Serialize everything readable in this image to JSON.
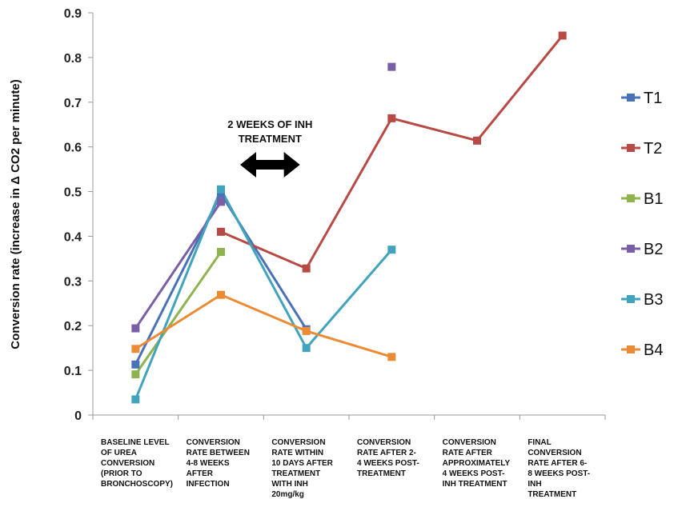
{
  "chart_data": {
    "type": "line",
    "title": "",
    "ylabel": "Conversion rate (increase in Δ CO2 per minute)",
    "xlabel": "",
    "ylim": [
      0,
      0.9
    ],
    "yticks": [
      "0",
      "0.1",
      "0.2",
      "0.3",
      "0.4",
      "0.5",
      "0.6",
      "0.7",
      "0.8",
      "0.9"
    ],
    "grid": false,
    "legend_position": "right",
    "categories": [
      [
        "BASELINE LEVEL",
        "OF UREA",
        "CONVERSION",
        "(PRIOR TO",
        "BRONCHOSCOPY)"
      ],
      [
        "CONVERSION",
        "RATE BETWEEN",
        "4-8 WEEKS",
        "AFTER",
        "INFECTION"
      ],
      [
        "CONVERSION",
        "RATE WITHIN",
        "10 DAYS AFTER",
        "TREATMENT",
        "WITH INH",
        "20mg/kg"
      ],
      [
        "CONVERSION",
        "RATE AFTER 2-",
        "4 WEEKS POST-",
        "TREATMENT"
      ],
      [
        "CONVERSION",
        "RATE AFTER",
        "APPROXIMATELY",
        "4 WEEKS POST-",
        "INH TREATMENT"
      ],
      [
        "FINAL",
        "CONVERSION",
        "RATE AFTER 6-",
        "8 WEEKS POST-",
        "INH",
        "TREATMENT"
      ]
    ],
    "series": [
      {
        "name": "T1",
        "color": "#4a72b8",
        "values": [
          0.113,
          0.495,
          0.192,
          null,
          null,
          null
        ]
      },
      {
        "name": "T2",
        "color": "#b84a46",
        "values": [
          null,
          0.41,
          0.328,
          0.664,
          0.614,
          0.849
        ]
      },
      {
        "name": "B1",
        "color": "#8db44f",
        "values": [
          0.091,
          0.365,
          null,
          null,
          null,
          null
        ]
      },
      {
        "name": "B2",
        "color": "#7a5fa6",
        "values": [
          0.194,
          0.477,
          null,
          0.779,
          null,
          null
        ]
      },
      {
        "name": "B3",
        "color": "#41a3bc",
        "values": [
          0.035,
          0.505,
          0.15,
          0.37,
          null,
          null
        ]
      },
      {
        "name": "B4",
        "color": "#ec8b35",
        "values": [
          0.148,
          0.269,
          0.188,
          0.13,
          null,
          null
        ]
      }
    ],
    "annotation": {
      "lines": [
        "2 WEEKS OF INH",
        "TREATMENT"
      ],
      "arrow": "double-headed",
      "spans_categories": [
        1,
        2
      ]
    }
  }
}
